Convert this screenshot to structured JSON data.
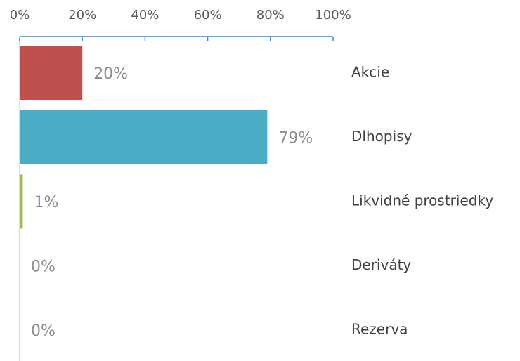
{
  "chart_data": {
    "type": "bar",
    "orientation": "horizontal",
    "categories": [
      "Akcie",
      "Dlhopisy",
      "Likvidné prostriedky",
      "Deriváty",
      "Rezerva"
    ],
    "values": [
      20,
      79,
      1,
      0,
      0
    ],
    "value_labels": [
      "20%",
      "79%",
      "1%",
      "0%",
      "0%"
    ],
    "colors": [
      "#c0504d",
      "#4bacc6",
      "#9bbb59"
    ],
    "xlim": [
      0,
      100
    ],
    "xticks": [
      {
        "value": 0,
        "label": "0%"
      },
      {
        "value": 20,
        "label": "20%"
      },
      {
        "value": 40,
        "label": "40%"
      },
      {
        "value": 60,
        "label": "60%"
      },
      {
        "value": 80,
        "label": "80%"
      },
      {
        "value": 100,
        "label": "100%"
      }
    ],
    "grid": false
  }
}
